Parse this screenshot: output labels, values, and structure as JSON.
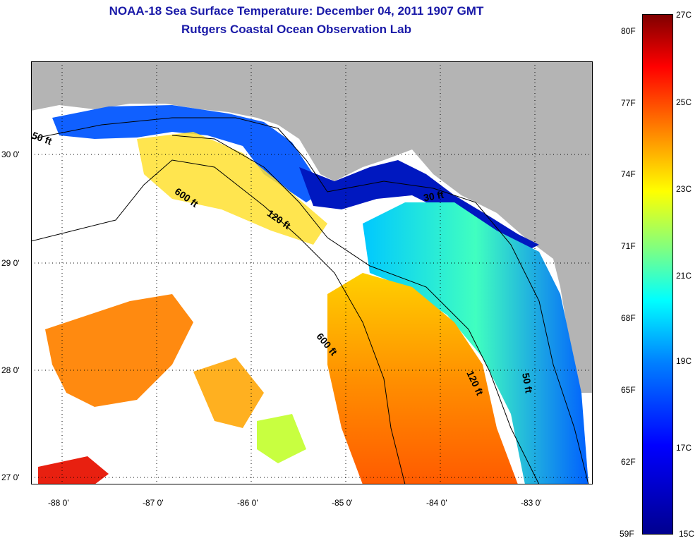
{
  "header": {
    "title": "NOAA-18 Sea Surface Temperature:  December 04, 2011 1907 GMT",
    "subtitle": "Rutgers Coastal Ocean Observation Lab"
  },
  "map": {
    "lat_labels": [
      "30 0'",
      "29 0'",
      "28 0'",
      "27 0'"
    ],
    "lon_labels": [
      "-88 0'",
      "-87 0'",
      "-86 0'",
      "-85 0'",
      "-84 0'",
      "-83 0'"
    ],
    "contour_labels": [
      "50 ft",
      "600 ft",
      "120 ft",
      "30 ft",
      "600 ft",
      "120 ft",
      "50 ft"
    ],
    "colors": {
      "land": "#b4b4b4",
      "no_data": "#ffffff",
      "gridline": "#000000"
    }
  },
  "colorbar": {
    "fahrenheit": [
      "80F",
      "77F",
      "74F",
      "71F",
      "68F",
      "65F",
      "62F",
      "59F"
    ],
    "celsius": [
      "27C",
      "25C",
      "23C",
      "21C",
      "19C",
      "17C",
      "15C"
    ]
  }
}
